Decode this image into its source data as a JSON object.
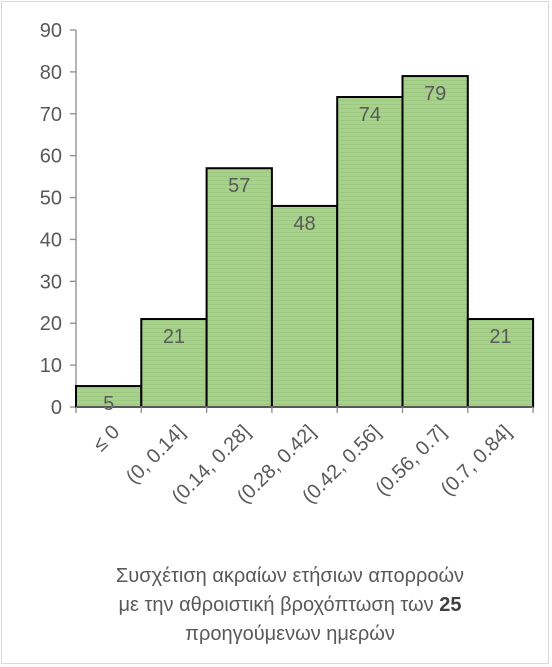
{
  "chart_data": {
    "type": "bar",
    "categories": [
      "≤ 0",
      "(0, 0.14]",
      "(0.14, 0.28]",
      "(0.28, 0.42]",
      "(0.42, 0.56]",
      "(0.56, 0.7]",
      "(0.7, 0.84]"
    ],
    "values": [
      5,
      21,
      57,
      48,
      74,
      79,
      21
    ],
    "ylim": [
      0,
      90
    ],
    "yticks": [
      "0",
      "10",
      "20",
      "30",
      "40",
      "50",
      "60",
      "70",
      "80",
      "90"
    ],
    "grid": false,
    "legend": "none",
    "bar_color": "#a9d18e",
    "bar_edge_color": "#000000",
    "text_color": "#595959"
  },
  "caption": {
    "line1": "Συσχέτιση ακραίων ετήσιων απορροών",
    "line2_prefix": "με την αθροιστική βροχόπτωση των ",
    "line2_bold": "25",
    "line3": "προηγούμενων ημερών"
  }
}
